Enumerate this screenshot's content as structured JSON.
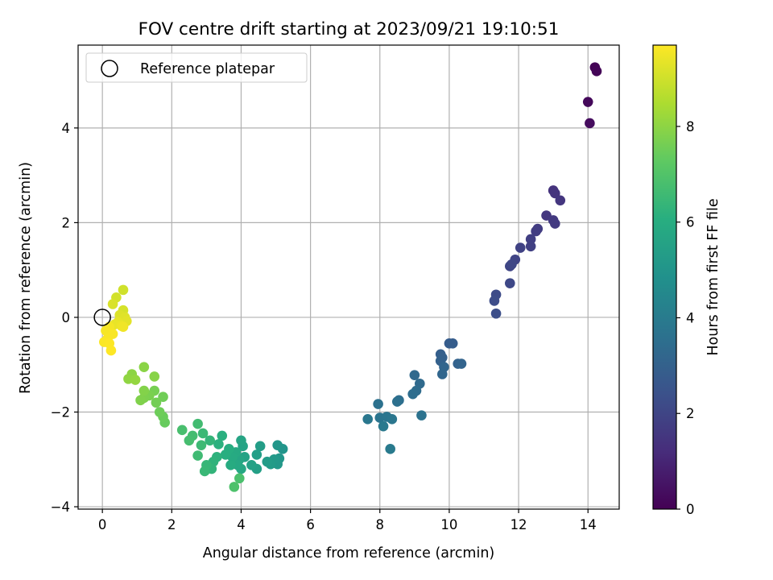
{
  "chart_data": {
    "type": "scatter",
    "title": "FOV centre drift starting at 2023/09/21 19:10:51",
    "xlabel": "Angular distance from reference (arcmin)",
    "ylabel": "Rotation from reference (arcmin)",
    "xlim": [
      -0.7,
      14.9
    ],
    "ylim": [
      -4.05,
      5.75
    ],
    "xticks": [
      0,
      2,
      4,
      6,
      8,
      10,
      12,
      14
    ],
    "yticks": [
      -4,
      -2,
      0,
      2,
      4
    ],
    "grid": true,
    "legend": {
      "position": "upper-left",
      "entries": [
        "Reference platepar"
      ]
    },
    "reference_point": {
      "x": 0,
      "y": 0
    },
    "colorbar": {
      "label": "Hours from first FF file",
      "range": [
        0,
        9.7
      ],
      "ticks": [
        0,
        2,
        4,
        6,
        8
      ],
      "colormap": "viridis",
      "stops": [
        "#440154",
        "#472d7b",
        "#3b528b",
        "#2c728e",
        "#21918c",
        "#28ae80",
        "#5ec962",
        "#addc30",
        "#fde725"
      ]
    },
    "points": [
      {
        "x": 14.2,
        "y": 5.28,
        "h": 0.05
      },
      {
        "x": 14.25,
        "y": 5.2,
        "h": 0.1
      },
      {
        "x": 14.0,
        "y": 4.55,
        "h": 0.2
      },
      {
        "x": 14.05,
        "y": 4.1,
        "h": 0.3
      },
      {
        "x": 13.0,
        "y": 2.68,
        "h": 1.4
      },
      {
        "x": 13.05,
        "y": 2.62,
        "h": 1.45
      },
      {
        "x": 13.2,
        "y": 2.47,
        "h": 1.5
      },
      {
        "x": 12.8,
        "y": 2.15,
        "h": 1.55
      },
      {
        "x": 13.0,
        "y": 2.05,
        "h": 1.6
      },
      {
        "x": 13.05,
        "y": 1.98,
        "h": 1.65
      },
      {
        "x": 12.55,
        "y": 1.87,
        "h": 1.7
      },
      {
        "x": 12.5,
        "y": 1.82,
        "h": 1.75
      },
      {
        "x": 12.35,
        "y": 1.65,
        "h": 1.8
      },
      {
        "x": 12.35,
        "y": 1.5,
        "h": 1.85
      },
      {
        "x": 12.05,
        "y": 1.47,
        "h": 1.9
      },
      {
        "x": 11.9,
        "y": 1.22,
        "h": 1.95
      },
      {
        "x": 11.75,
        "y": 1.08,
        "h": 2.0
      },
      {
        "x": 11.8,
        "y": 1.12,
        "h": 2.05
      },
      {
        "x": 11.75,
        "y": 0.72,
        "h": 2.1
      },
      {
        "x": 11.35,
        "y": 0.48,
        "h": 2.2
      },
      {
        "x": 11.3,
        "y": 0.35,
        "h": 2.25
      },
      {
        "x": 11.35,
        "y": 0.08,
        "h": 2.3
      },
      {
        "x": 10.0,
        "y": -0.55,
        "h": 2.8
      },
      {
        "x": 10.1,
        "y": -0.55,
        "h": 2.85
      },
      {
        "x": 9.75,
        "y": -0.78,
        "h": 2.9
      },
      {
        "x": 9.8,
        "y": -0.85,
        "h": 2.95
      },
      {
        "x": 9.75,
        "y": -0.92,
        "h": 3.0
      },
      {
        "x": 10.25,
        "y": -0.98,
        "h": 3.05
      },
      {
        "x": 10.35,
        "y": -0.98,
        "h": 3.1
      },
      {
        "x": 9.85,
        "y": -1.05,
        "h": 3.15
      },
      {
        "x": 9.8,
        "y": -1.2,
        "h": 3.2
      },
      {
        "x": 9.0,
        "y": -1.22,
        "h": 3.3
      },
      {
        "x": 9.15,
        "y": -1.4,
        "h": 3.35
      },
      {
        "x": 9.05,
        "y": -1.55,
        "h": 3.4
      },
      {
        "x": 8.95,
        "y": -1.62,
        "h": 3.45
      },
      {
        "x": 8.55,
        "y": -1.75,
        "h": 3.5
      },
      {
        "x": 8.5,
        "y": -1.78,
        "h": 3.55
      },
      {
        "x": 7.95,
        "y": -1.83,
        "h": 3.6
      },
      {
        "x": 9.2,
        "y": -2.07,
        "h": 3.65
      },
      {
        "x": 8.0,
        "y": -2.12,
        "h": 3.7
      },
      {
        "x": 8.2,
        "y": -2.1,
        "h": 3.75
      },
      {
        "x": 8.35,
        "y": -2.15,
        "h": 3.8
      },
      {
        "x": 7.65,
        "y": -2.15,
        "h": 3.85
      },
      {
        "x": 8.1,
        "y": -2.3,
        "h": 3.9
      },
      {
        "x": 8.3,
        "y": -2.78,
        "h": 3.95
      },
      {
        "x": 5.2,
        "y": -2.78,
        "h": 5.0
      },
      {
        "x": 5.05,
        "y": -2.7,
        "h": 5.05
      },
      {
        "x": 5.1,
        "y": -2.98,
        "h": 5.1
      },
      {
        "x": 5.05,
        "y": -3.1,
        "h": 5.15
      },
      {
        "x": 4.95,
        "y": -3.0,
        "h": 5.2
      },
      {
        "x": 4.85,
        "y": -3.1,
        "h": 5.25
      },
      {
        "x": 4.75,
        "y": -3.05,
        "h": 5.3
      },
      {
        "x": 4.55,
        "y": -2.72,
        "h": 5.35
      },
      {
        "x": 4.45,
        "y": -2.9,
        "h": 5.4
      },
      {
        "x": 4.45,
        "y": -3.2,
        "h": 5.45
      },
      {
        "x": 4.3,
        "y": -3.12,
        "h": 5.5
      },
      {
        "x": 4.1,
        "y": -2.95,
        "h": 5.55
      },
      {
        "x": 4.05,
        "y": -2.72,
        "h": 5.6
      },
      {
        "x": 4.0,
        "y": -2.6,
        "h": 5.65
      },
      {
        "x": 3.95,
        "y": -3.0,
        "h": 5.7
      },
      {
        "x": 4.0,
        "y": -3.2,
        "h": 5.75
      },
      {
        "x": 3.9,
        "y": -3.12,
        "h": 5.8
      },
      {
        "x": 3.85,
        "y": -2.85,
        "h": 5.85
      },
      {
        "x": 3.75,
        "y": -2.95,
        "h": 5.9
      },
      {
        "x": 3.7,
        "y": -3.12,
        "h": 5.95
      },
      {
        "x": 3.65,
        "y": -2.78,
        "h": 6.0
      },
      {
        "x": 3.55,
        "y": -2.9,
        "h": 6.05
      },
      {
        "x": 3.45,
        "y": -2.5,
        "h": 6.1
      },
      {
        "x": 3.35,
        "y": -2.68,
        "h": 6.15
      },
      {
        "x": 3.3,
        "y": -2.95,
        "h": 6.2
      },
      {
        "x": 3.2,
        "y": -3.05,
        "h": 6.25
      },
      {
        "x": 3.15,
        "y": -3.2,
        "h": 6.3
      },
      {
        "x": 3.1,
        "y": -2.6,
        "h": 6.35
      },
      {
        "x": 3.0,
        "y": -3.12,
        "h": 6.4
      },
      {
        "x": 2.95,
        "y": -3.25,
        "h": 6.45
      },
      {
        "x": 2.9,
        "y": -2.45,
        "h": 6.5
      },
      {
        "x": 2.85,
        "y": -2.7,
        "h": 6.55
      },
      {
        "x": 2.75,
        "y": -2.92,
        "h": 6.6
      },
      {
        "x": 2.75,
        "y": -2.25,
        "h": 6.65
      },
      {
        "x": 2.6,
        "y": -2.5,
        "h": 6.7
      },
      {
        "x": 2.5,
        "y": -2.6,
        "h": 6.75
      },
      {
        "x": 2.3,
        "y": -2.38,
        "h": 6.8
      },
      {
        "x": 3.95,
        "y": -3.4,
        "h": 6.85
      },
      {
        "x": 3.8,
        "y": -3.58,
        "h": 6.9
      },
      {
        "x": 1.8,
        "y": -2.22,
        "h": 7.4
      },
      {
        "x": 1.75,
        "y": -2.1,
        "h": 7.45
      },
      {
        "x": 1.65,
        "y": -2.0,
        "h": 7.5
      },
      {
        "x": 1.75,
        "y": -1.68,
        "h": 7.55
      },
      {
        "x": 1.55,
        "y": -1.8,
        "h": 7.6
      },
      {
        "x": 1.5,
        "y": -1.55,
        "h": 7.65
      },
      {
        "x": 1.35,
        "y": -1.65,
        "h": 7.7
      },
      {
        "x": 1.2,
        "y": -1.7,
        "h": 7.75
      },
      {
        "x": 1.1,
        "y": -1.75,
        "h": 7.8
      },
      {
        "x": 1.2,
        "y": -1.55,
        "h": 7.85
      },
      {
        "x": 1.5,
        "y": -1.25,
        "h": 7.9
      },
      {
        "x": 1.2,
        "y": -1.05,
        "h": 7.95
      },
      {
        "x": 0.85,
        "y": -1.2,
        "h": 8.0
      },
      {
        "x": 0.75,
        "y": -1.3,
        "h": 8.05
      },
      {
        "x": 0.95,
        "y": -1.32,
        "h": 8.1
      },
      {
        "x": 0.6,
        "y": 0.58,
        "h": 9.0
      },
      {
        "x": 0.4,
        "y": 0.42,
        "h": 9.05
      },
      {
        "x": 0.6,
        "y": 0.15,
        "h": 9.1
      },
      {
        "x": 0.3,
        "y": 0.28,
        "h": 9.15
      },
      {
        "x": 0.5,
        "y": 0.05,
        "h": 9.2
      },
      {
        "x": 0.65,
        "y": 0.0,
        "h": 9.25
      },
      {
        "x": 0.7,
        "y": -0.08,
        "h": 9.3
      },
      {
        "x": 0.45,
        "y": -0.1,
        "h": 9.35
      },
      {
        "x": 0.35,
        "y": -0.15,
        "h": 9.4
      },
      {
        "x": 0.55,
        "y": -0.18,
        "h": 9.45
      },
      {
        "x": 0.6,
        "y": -0.2,
        "h": 9.5
      },
      {
        "x": 0.2,
        "y": -0.2,
        "h": 9.55
      },
      {
        "x": 0.1,
        "y": -0.28,
        "h": 9.6
      },
      {
        "x": 0.3,
        "y": -0.35,
        "h": 9.62
      },
      {
        "x": 0.15,
        "y": -0.45,
        "h": 9.64
      },
      {
        "x": 0.05,
        "y": -0.52,
        "h": 9.66
      },
      {
        "x": 0.2,
        "y": -0.55,
        "h": 9.68
      },
      {
        "x": 0.25,
        "y": -0.7,
        "h": 9.7
      }
    ]
  }
}
